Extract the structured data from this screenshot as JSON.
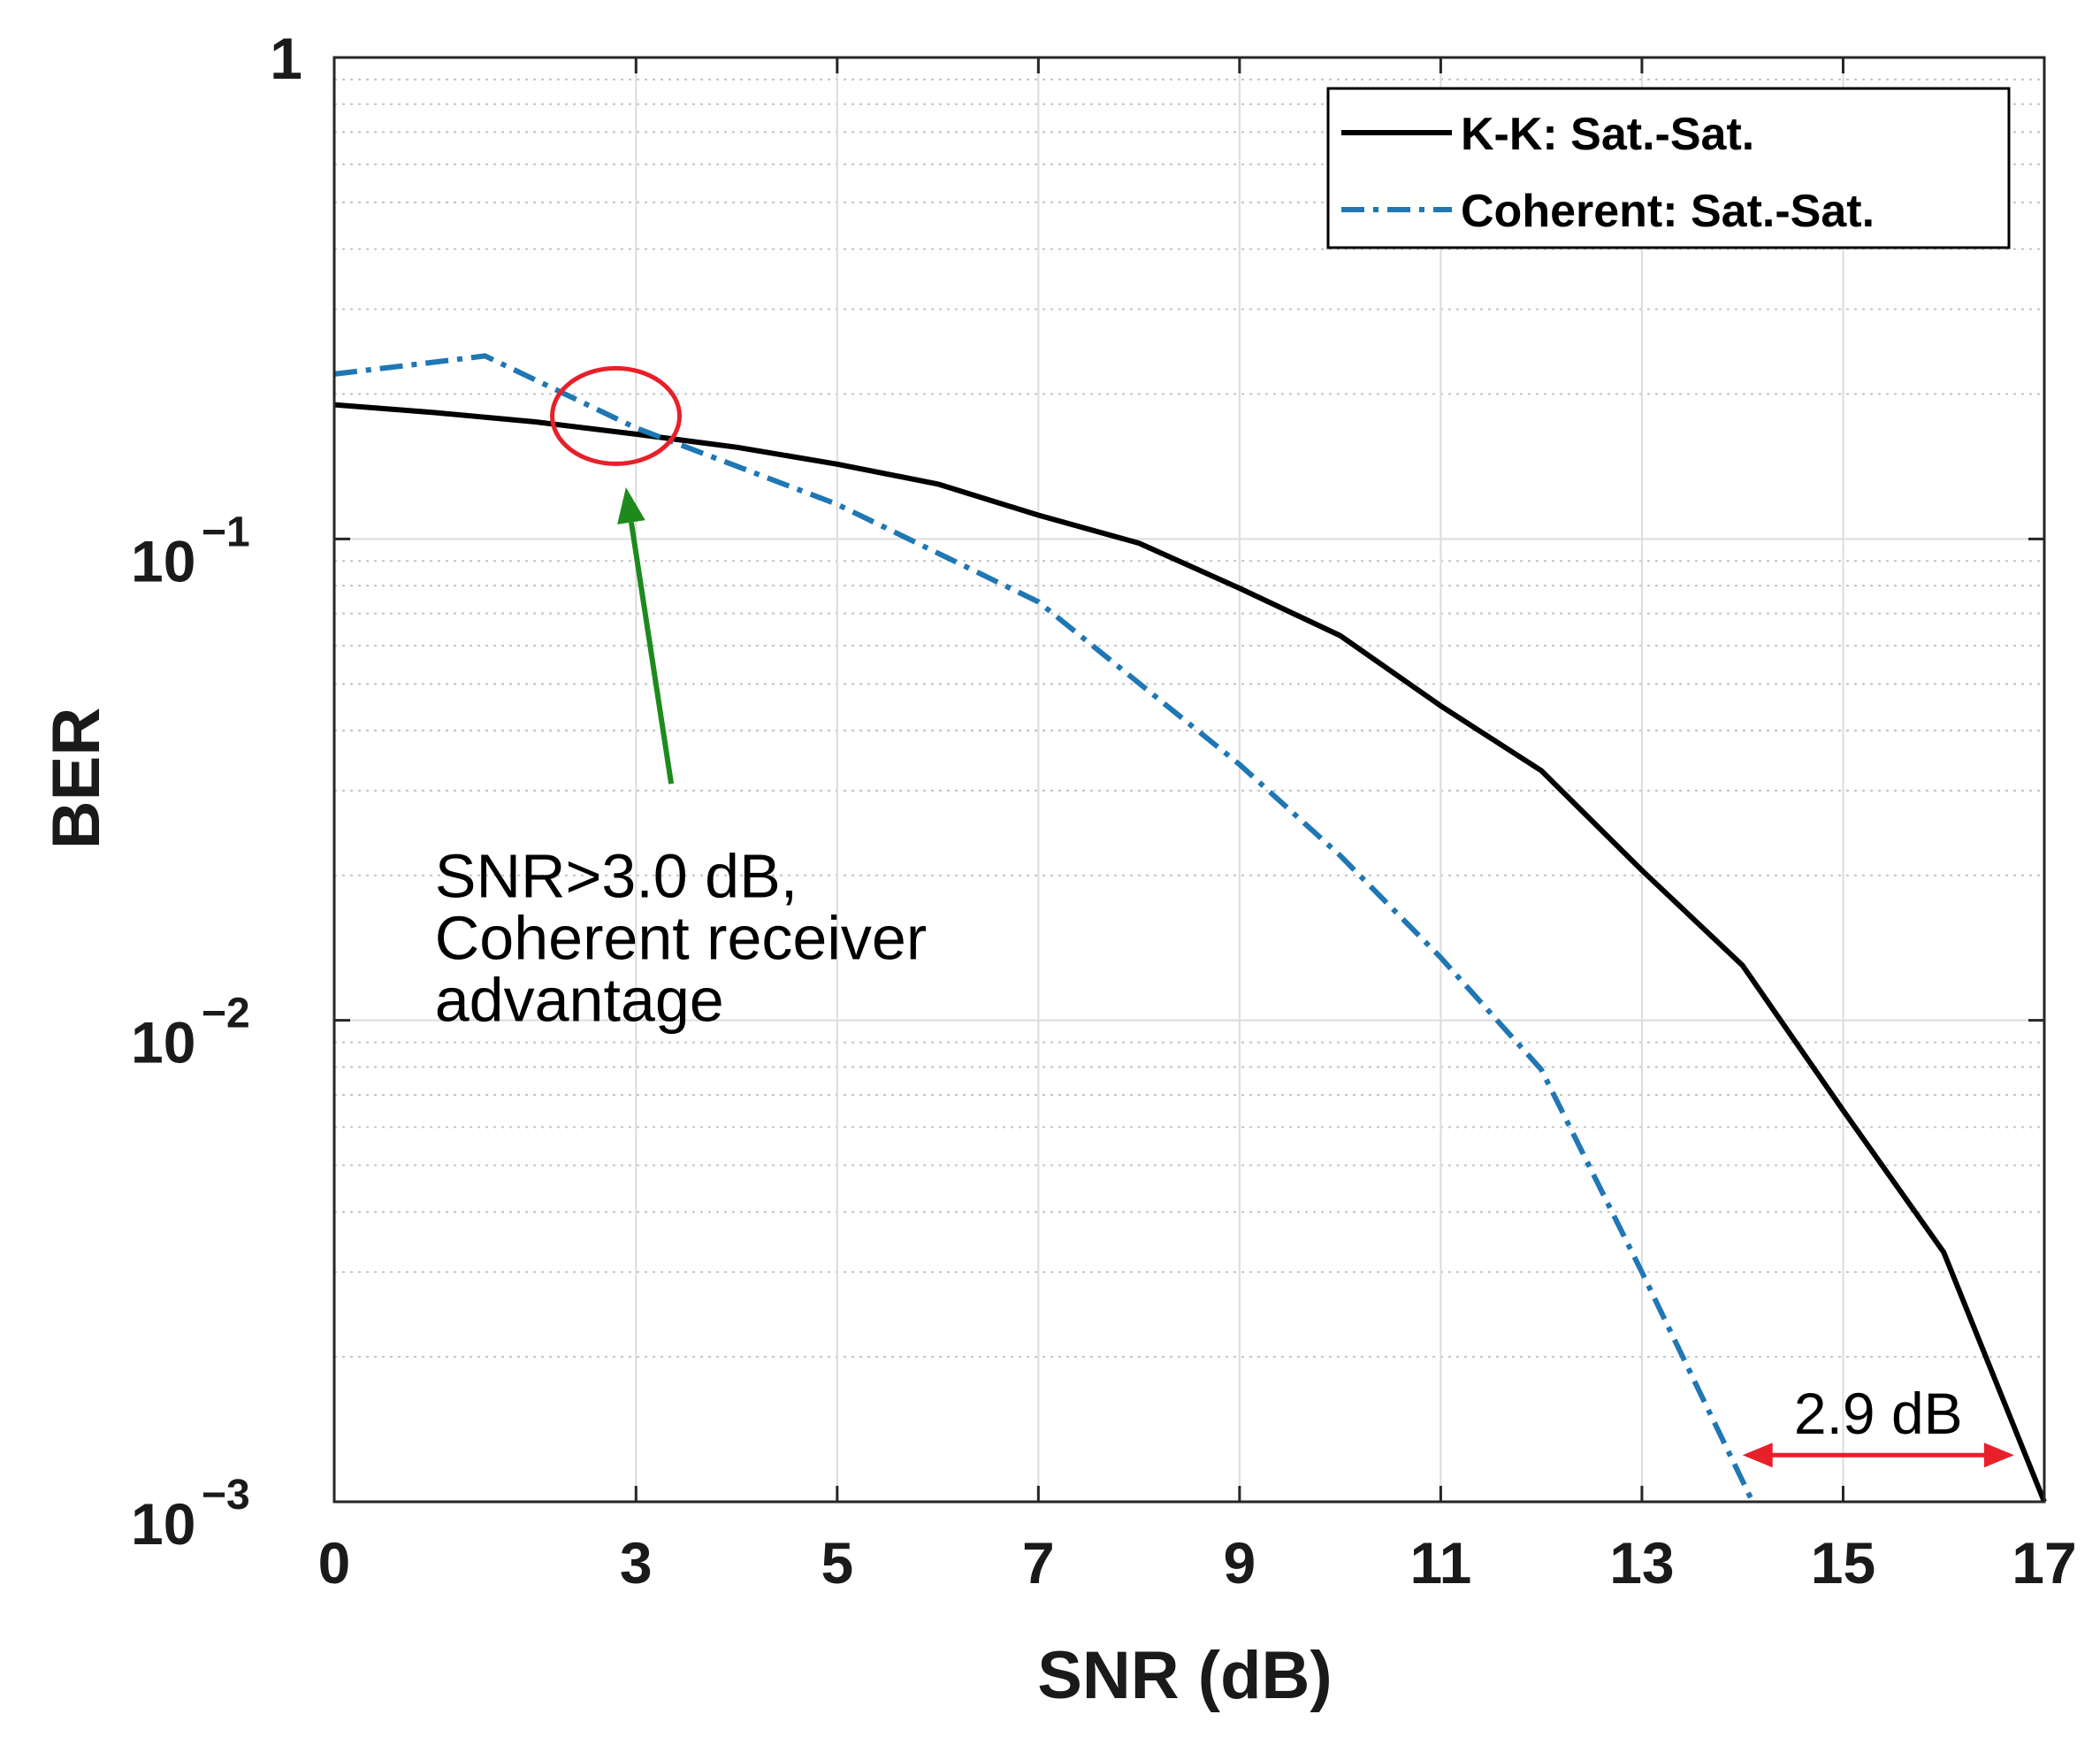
{
  "chart_data": {
    "type": "line",
    "xlabel": "SNR (dB)",
    "ylabel": "BER",
    "xlim": [
      0,
      17
    ],
    "ylim": [
      0.001,
      1
    ],
    "yscale": "log",
    "grid": true,
    "minor_grid": true,
    "x_ticks": [
      0,
      3,
      5,
      7,
      9,
      11,
      13,
      15,
      17
    ],
    "y_ticks": [
      {
        "value": 1,
        "base": "1",
        "exp": ""
      },
      {
        "value": 0.1,
        "base": "10",
        "exp": "−1"
      },
      {
        "value": 0.01,
        "base": "10",
        "exp": "−2"
      },
      {
        "value": 0.001,
        "base": "10",
        "exp": "−3"
      }
    ],
    "legend_position": "top-right",
    "series": [
      {
        "name": "K-K: Sat.-Sat.",
        "color": "#000000",
        "style": "solid",
        "x": [
          0,
          1,
          2,
          3,
          4,
          5,
          6,
          7,
          8,
          9,
          10,
          11,
          12,
          13,
          14,
          15,
          16,
          17
        ],
        "y": [
          0.19,
          0.183,
          0.175,
          0.165,
          0.155,
          0.143,
          0.13,
          0.112,
          0.098,
          0.079,
          0.063,
          0.045,
          0.033,
          0.0205,
          0.013,
          0.0065,
          0.0033,
          0.001
        ]
      },
      {
        "name": "Coherent: Sat.-Sat.",
        "color": "#1f77b4",
        "style": "dashdot",
        "x": [
          0,
          1,
          1.5,
          3,
          5,
          7,
          9,
          10,
          11,
          12,
          13,
          14.1
        ],
        "y": [
          0.22,
          0.233,
          0.24,
          0.17,
          0.118,
          0.074,
          0.034,
          0.022,
          0.0135,
          0.0079,
          0.003,
          0.001
        ]
      }
    ],
    "annotations": {
      "circle": {
        "x": 2.8,
        "y": 0.18,
        "color": "#e8202a"
      },
      "arrow": {
        "from_x": 3.35,
        "from_y": 0.031,
        "to_x": 2.9,
        "to_y": 0.128,
        "color": "#1e8a1e"
      },
      "text_lines": [
        "SNR>3.0 dB,",
        "Coherent receiver",
        "advantage"
      ],
      "text_anchor": {
        "x": 1.0,
        "y": 0.018
      },
      "gap": {
        "label": "2.9 dB",
        "from_x": 14.0,
        "to_x": 16.7,
        "y": 0.00125,
        "color": "#e8202a"
      }
    }
  }
}
